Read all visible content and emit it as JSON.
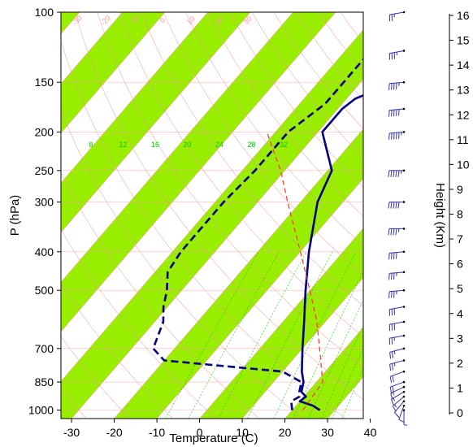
{
  "chart_data": {
    "type": "skew-t",
    "title": "",
    "xlabel": "Temperature (C)",
    "ylabel": "P (hPa)",
    "y2label": "Height (Km)",
    "xlim": [
      -35,
      50
    ],
    "ylim": [
      1050,
      100
    ],
    "yscale": "log",
    "x_ticks": [
      -30,
      -20,
      -10,
      0,
      10,
      20,
      30,
      40
    ],
    "y_ticks": [
      100,
      150,
      200,
      250,
      300,
      400,
      500,
      700,
      850,
      1000
    ],
    "height_ticks": [
      "0",
      "1",
      "2",
      "3",
      "4",
      "5",
      "6",
      "7",
      "8",
      "9",
      "10",
      "11",
      "12",
      "13",
      "14",
      "15",
      "16"
    ],
    "mixing_ratio_labels": [
      "8",
      "12",
      "16",
      "20",
      "24",
      "28",
      "32"
    ],
    "isotherm_labels": [
      "-30",
      "-20",
      "-10",
      "0",
      "10",
      "20",
      "30"
    ],
    "mixing_ratio_lines": [
      2,
      3,
      5,
      8,
      12,
      16,
      20,
      24,
      28,
      32
    ],
    "series": [
      {
        "role": "temperature",
        "color": "#000080",
        "style": "solid",
        "p": [
          1000,
          975,
          950,
          925,
          900,
          850,
          800,
          700,
          600,
          500,
          400,
          300,
          250,
          200,
          175,
          165,
          160,
          150,
          140,
          125,
          110,
          100
        ],
        "t": [
          26.5,
          24,
          20,
          20.5,
          18.5,
          17,
          14.5,
          10,
          5,
          -1,
          -8,
          -16,
          -19,
          -29,
          -29,
          -28,
          -26,
          -24,
          -21,
          -18,
          -15,
          -14
        ]
      },
      {
        "role": "dewpoint",
        "color": "#000080",
        "style": "dashed",
        "p": [
          1000,
          975,
          950,
          925,
          900,
          850,
          800,
          750,
          700,
          600,
          550,
          500,
          450,
          400,
          350,
          300,
          250,
          200,
          170,
          150,
          140,
          125,
          110,
          100
        ],
        "t": [
          20,
          19,
          18,
          19,
          18,
          16.5,
          10,
          -20,
          -25,
          -28,
          -31,
          -33.5,
          -37,
          -38,
          -38,
          -38,
          -37,
          -37,
          -34,
          -34,
          -34,
          -34,
          -32,
          -31
        ]
      },
      {
        "role": "parcel",
        "color": "#ff3333",
        "style": "dashed",
        "p": [
          1000,
          850,
          700,
          600,
          500,
          400,
          300,
          250,
          200
        ],
        "t": [
          22.5,
          21.5,
          14,
          8,
          0,
          -10,
          -23,
          -31,
          -42
        ]
      }
    ],
    "wind_barbs": [
      {
        "p": 1000,
        "speed_kt": 5,
        "dir_deg": 180
      },
      {
        "p": 975,
        "speed_kt": 10,
        "dir_deg": 200
      },
      {
        "p": 950,
        "speed_kt": 10,
        "dir_deg": 220
      },
      {
        "p": 925,
        "speed_kt": 15,
        "dir_deg": 230
      },
      {
        "p": 900,
        "speed_kt": 15,
        "dir_deg": 240
      },
      {
        "p": 875,
        "speed_kt": 15,
        "dir_deg": 245
      },
      {
        "p": 850,
        "speed_kt": 20,
        "dir_deg": 250
      },
      {
        "p": 800,
        "speed_kt": 20,
        "dir_deg": 250
      },
      {
        "p": 750,
        "speed_kt": 25,
        "dir_deg": 255
      },
      {
        "p": 700,
        "speed_kt": 25,
        "dir_deg": 255
      },
      {
        "p": 650,
        "speed_kt": 25,
        "dir_deg": 260
      },
      {
        "p": 600,
        "speed_kt": 30,
        "dir_deg": 260
      },
      {
        "p": 550,
        "speed_kt": 30,
        "dir_deg": 260
      },
      {
        "p": 500,
        "speed_kt": 35,
        "dir_deg": 265
      },
      {
        "p": 450,
        "speed_kt": 35,
        "dir_deg": 265
      },
      {
        "p": 400,
        "speed_kt": 40,
        "dir_deg": 265
      },
      {
        "p": 350,
        "speed_kt": 45,
        "dir_deg": 270
      },
      {
        "p": 300,
        "speed_kt": 50,
        "dir_deg": 270
      },
      {
        "p": 250,
        "speed_kt": 55,
        "dir_deg": 270
      },
      {
        "p": 200,
        "speed_kt": 55,
        "dir_deg": 265
      },
      {
        "p": 175,
        "speed_kt": 50,
        "dir_deg": 265
      },
      {
        "p": 150,
        "speed_kt": 45,
        "dir_deg": 265
      },
      {
        "p": 125,
        "speed_kt": 35,
        "dir_deg": 260
      },
      {
        "p": 100,
        "speed_kt": 25,
        "dir_deg": 260
      }
    ],
    "colors": {
      "temperature": "#000080",
      "dewpoint": "#000080",
      "parcel": "#ff3333",
      "isotherm_band": "#99ee00",
      "isotherm_line": "#ff9999",
      "mixing_ratio": "#00cc00",
      "wind_barb": "#3333aa"
    },
    "grid": true,
    "legend": "none"
  }
}
